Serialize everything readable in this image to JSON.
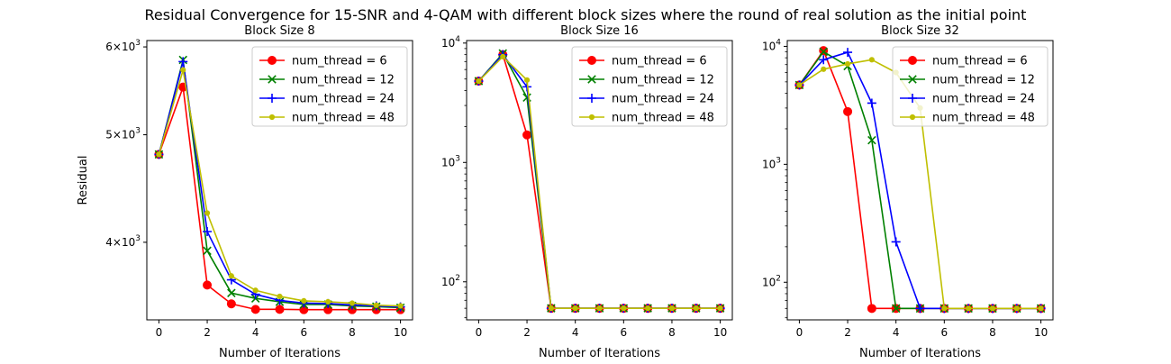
{
  "figure": {
    "title": "Residual Convergence for 15-SNR and 4-QAM with different block sizes where the round of real solution as the initial point"
  },
  "chart_data": [
    {
      "type": "line",
      "title": "Block Size 8",
      "xlabel": "Number of Iterations",
      "ylabel": "Residual",
      "yscale": "log",
      "xlim": [
        -0.5,
        10.5
      ],
      "ylim": [
        3405,
        6080
      ],
      "xticks": [
        0,
        2,
        4,
        6,
        8,
        10
      ],
      "xtick_labels": [
        "0",
        "2",
        "4",
        "6",
        "8",
        "10"
      ],
      "yticks": [
        {
          "value": 4000,
          "mantissa": "4",
          "exponent": "3"
        },
        {
          "value": 5000,
          "mantissa": "5",
          "exponent": "3"
        },
        {
          "value": 6000,
          "mantissa": "6",
          "exponent": "3"
        }
      ],
      "legend_position": "upper-right",
      "grid": false,
      "x": [
        0,
        1,
        2,
        3,
        4,
        5,
        6,
        7,
        8,
        9,
        10
      ],
      "series": [
        {
          "name": "num_thread = 6",
          "color": "#ff0000",
          "marker": "circle",
          "values": [
            4800,
            5520,
            3660,
            3520,
            3480,
            3480,
            3478,
            3478,
            3478,
            3478,
            3478
          ]
        },
        {
          "name": "num_thread = 12",
          "color": "#008000",
          "marker": "x",
          "values": [
            4800,
            5840,
            3930,
            3600,
            3560,
            3535,
            3515,
            3515,
            3505,
            3500,
            3492
          ]
        },
        {
          "name": "num_thread = 24",
          "color": "#0000ff",
          "marker": "plus",
          "values": [
            4800,
            5820,
            4090,
            3700,
            3590,
            3545,
            3525,
            3522,
            3512,
            3505,
            3498
          ]
        },
        {
          "name": "num_thread = 48",
          "color": "#bfbf00",
          "marker": "dot",
          "values": [
            4800,
            5720,
            4250,
            3730,
            3620,
            3575,
            3542,
            3535,
            3525,
            3510,
            3505
          ]
        }
      ]
    },
    {
      "type": "line",
      "title": "Block Size 16",
      "xlabel": "Number of Iterations",
      "ylabel": "",
      "yscale": "log",
      "xlim": [
        -0.5,
        10.5
      ],
      "ylim": [
        48,
        10500
      ],
      "xticks": [
        0,
        2,
        4,
        6,
        8,
        10
      ],
      "xtick_labels": [
        "0",
        "2",
        "4",
        "6",
        "8",
        "10"
      ],
      "yticks": [
        {
          "value": 100,
          "mantissa": "10",
          "exponent": "2"
        },
        {
          "value": 1000,
          "mantissa": "10",
          "exponent": "3"
        },
        {
          "value": 10000,
          "mantissa": "10",
          "exponent": "4"
        }
      ],
      "legend_position": "upper-right",
      "grid": false,
      "x": [
        0,
        1,
        2,
        3,
        4,
        5,
        6,
        7,
        8,
        9,
        10
      ],
      "series": [
        {
          "name": "num_thread = 6",
          "color": "#ff0000",
          "marker": "circle",
          "values": [
            4800,
            8000,
            1700,
            60,
            60,
            60,
            60,
            60,
            60,
            60,
            60
          ]
        },
        {
          "name": "num_thread = 12",
          "color": "#008000",
          "marker": "x",
          "values": [
            4800,
            8200,
            3500,
            60,
            60,
            60,
            60,
            60,
            60,
            60,
            60
          ]
        },
        {
          "name": "num_thread = 24",
          "color": "#0000ff",
          "marker": "plus",
          "values": [
            4800,
            8000,
            4300,
            60,
            60,
            60,
            60,
            60,
            60,
            60,
            60
          ]
        },
        {
          "name": "num_thread = 48",
          "color": "#bfbf00",
          "marker": "dot",
          "values": [
            4800,
            7700,
            4900,
            60,
            60,
            60,
            60,
            60,
            60,
            60,
            60
          ]
        }
      ]
    },
    {
      "type": "line",
      "title": "Block Size 32",
      "xlabel": "Number of Iterations",
      "ylabel": "",
      "yscale": "log",
      "xlim": [
        -0.5,
        10.5
      ],
      "ylim": [
        48,
        11200
      ],
      "xticks": [
        0,
        2,
        4,
        6,
        8,
        10
      ],
      "xtick_labels": [
        "0",
        "2",
        "4",
        "6",
        "8",
        "10"
      ],
      "yticks": [
        {
          "value": 100,
          "mantissa": "10",
          "exponent": "2"
        },
        {
          "value": 1000,
          "mantissa": "10",
          "exponent": "3"
        },
        {
          "value": 10000,
          "mantissa": "10",
          "exponent": "4"
        }
      ],
      "legend_position": "upper-right",
      "grid": false,
      "x": [
        0,
        1,
        2,
        3,
        4,
        5,
        6,
        7,
        8,
        9,
        10
      ],
      "series": [
        {
          "name": "num_thread = 6",
          "color": "#ff0000",
          "marker": "circle",
          "values": [
            4700,
            9200,
            2800,
            60,
            60,
            60,
            60,
            60,
            60,
            60,
            60
          ]
        },
        {
          "name": "num_thread = 12",
          "color": "#008000",
          "marker": "x",
          "values": [
            4700,
            9000,
            6800,
            1600,
            60,
            60,
            60,
            60,
            60,
            60,
            60
          ]
        },
        {
          "name": "num_thread = 24",
          "color": "#0000ff",
          "marker": "plus",
          "values": [
            4700,
            7700,
            8900,
            3300,
            220,
            60,
            60,
            60,
            60,
            60,
            60
          ]
        },
        {
          "name": "num_thread = 48",
          "color": "#bfbf00",
          "marker": "dot",
          "values": [
            4700,
            6400,
            7100,
            7700,
            6000,
            3000,
            60,
            60,
            60,
            60,
            60
          ]
        }
      ]
    }
  ]
}
